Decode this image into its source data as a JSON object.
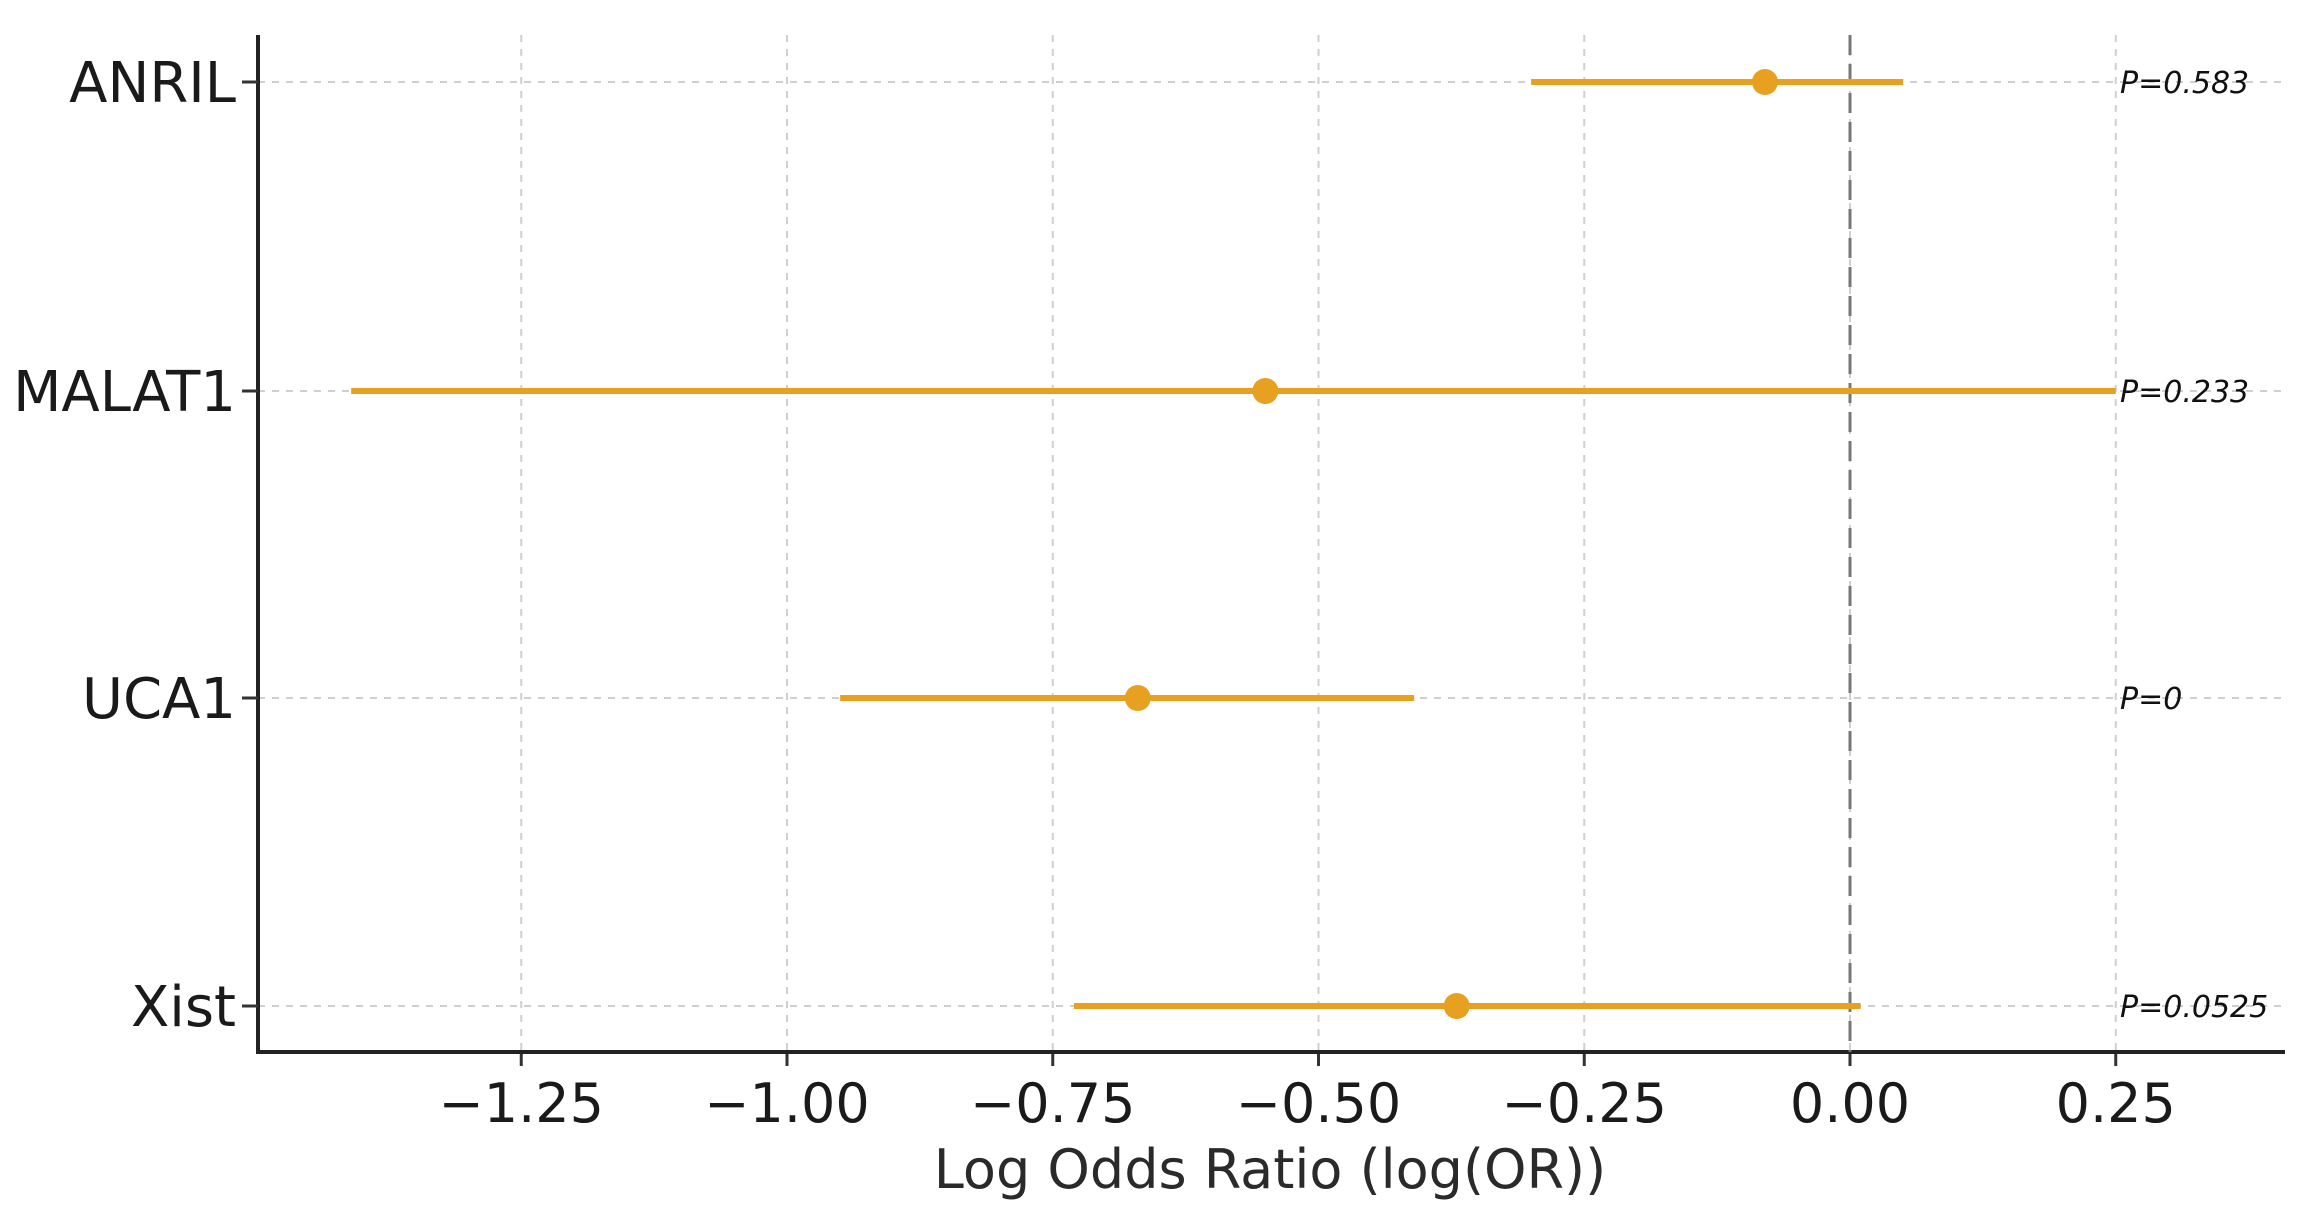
{
  "chart_data": {
    "type": "forest",
    "title": "",
    "xlabel": "Log Odds Ratio (log(OR))",
    "ylabel": "",
    "xlim": [
      -1.5,
      0.4
    ],
    "xticks": [
      -1.25,
      -1.0,
      -0.75,
      -0.5,
      -0.25,
      0.0,
      0.25
    ],
    "xtick_labels": [
      "−1.25",
      "−1.00",
      "−0.75",
      "−0.50",
      "−0.25",
      "0.00",
      "0.25"
    ],
    "reference_line": 0.0,
    "grid": true,
    "color": "#E8A020",
    "rows": [
      {
        "label": "ANRIL",
        "estimate": -0.08,
        "ci_low": -0.3,
        "ci_high": 0.05,
        "p_text": "P=0.583"
      },
      {
        "label": "MALAT1",
        "estimate": -0.55,
        "ci_low": -1.41,
        "ci_high": 0.25,
        "p_text": "P=0.233"
      },
      {
        "label": "UCA1",
        "estimate": -0.67,
        "ci_low": -0.95,
        "ci_high": -0.41,
        "p_text": "P=0"
      },
      {
        "label": "Xist",
        "estimate": -0.37,
        "ci_low": -0.73,
        "ci_high": 0.01,
        "p_text": "P=0.0525"
      }
    ]
  }
}
